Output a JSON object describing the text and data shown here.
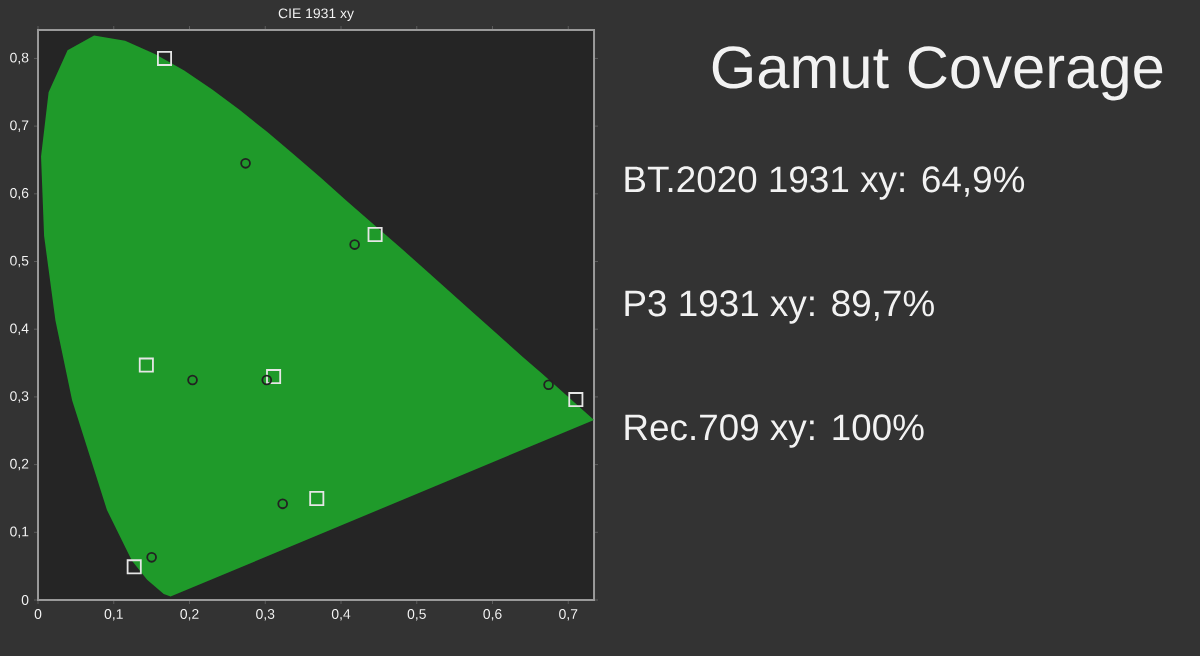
{
  "chart_data": {
    "type": "scatter",
    "title": "Gamut Coverage",
    "subtitle": "CIE 1931 xy",
    "annotations": [
      "BT.2020 1931 xy: 64,9%",
      "P3 1931 xy: 89,7%",
      "Rec.709 xy: 100%"
    ],
    "xlim": [
      0,
      0.734
    ],
    "ylim": [
      0,
      0.842
    ],
    "xticks": [
      0,
      {
        "value": 0.1,
        "label": "0,1"
      },
      {
        "value": 0.2,
        "label": "0,2"
      },
      {
        "value": 0.3,
        "label": "0,3"
      },
      {
        "value": 0.4,
        "label": "0,4"
      },
      {
        "value": 0.5,
        "label": "0,5"
      },
      {
        "value": 0.6,
        "label": "0,6"
      },
      {
        "value": 0.7,
        "label": "0,7"
      }
    ],
    "yticks": [
      0,
      {
        "value": 0.1,
        "label": "0,1"
      },
      {
        "value": 0.2,
        "label": "0,2"
      },
      {
        "value": 0.3,
        "label": "0,3"
      },
      {
        "value": 0.4,
        "label": "0,4"
      },
      {
        "value": 0.5,
        "label": "0,5"
      },
      {
        "value": 0.6,
        "label": "0,6"
      },
      {
        "value": 0.7,
        "label": "0,7"
      },
      {
        "value": 0.8,
        "label": "0,8"
      }
    ],
    "series": [
      {
        "type": "area",
        "color": "#1f9a2a",
        "x": [
          0.175,
          0.166,
          0.144,
          0.124,
          0.091,
          0.045,
          0.023,
          0.008,
          0.004,
          0.014,
          0.039,
          0.074,
          0.115,
          0.155,
          0.193,
          0.23,
          0.266,
          0.302,
          0.337,
          0.373,
          0.408,
          0.444,
          0.479,
          0.512,
          0.547,
          0.575,
          0.608,
          0.64,
          0.666,
          0.692,
          0.734
        ],
        "values": [
          0.005,
          0.009,
          0.03,
          0.058,
          0.133,
          0.295,
          0.413,
          0.538,
          0.655,
          0.75,
          0.812,
          0.834,
          0.826,
          0.806,
          0.782,
          0.754,
          0.724,
          0.692,
          0.659,
          0.624,
          0.589,
          0.554,
          0.52,
          0.487,
          0.452,
          0.424,
          0.391,
          0.359,
          0.334,
          0.308,
          0.266
        ]
      },
      {
        "marker": "square",
        "color": "#e6e6e6",
        "x": [
          0.167,
          0.71,
          0.127,
          0.445,
          0.143,
          0.368,
          0.311
        ],
        "values": [
          0.8,
          0.296,
          0.049,
          0.54,
          0.347,
          0.15,
          0.33
        ]
      },
      {
        "marker": "circle",
        "color": "#222222",
        "x": [
          0.274,
          0.418,
          0.204,
          0.302,
          0.674,
          0.323,
          0.15
        ],
        "values": [
          0.645,
          0.525,
          0.325,
          0.325,
          0.318,
          0.142,
          0.063
        ]
      }
    ]
  }
}
